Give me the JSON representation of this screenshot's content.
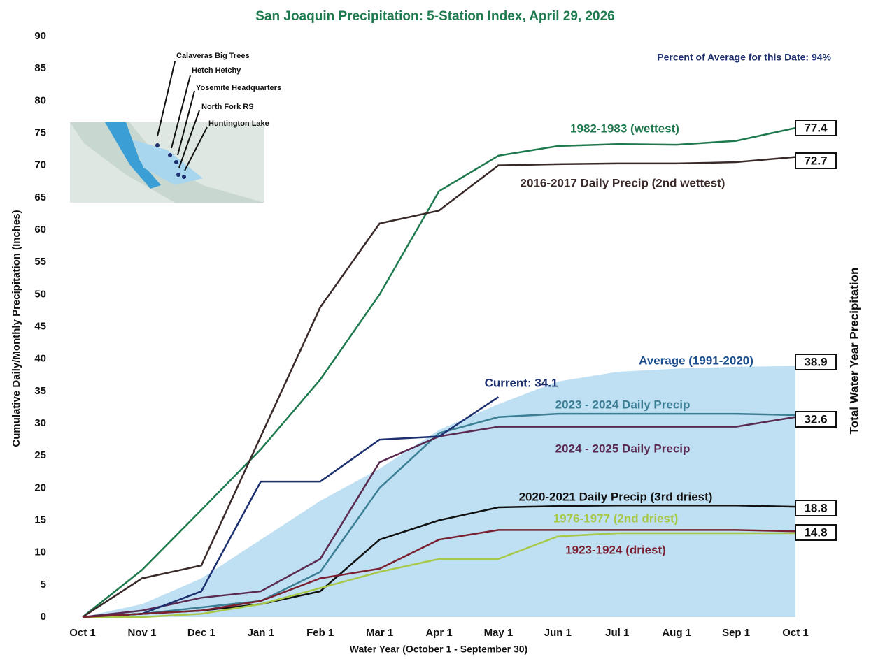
{
  "chart_data": {
    "type": "line",
    "title": "San Joaquin Precipitation: 5-Station Index, April 29, 2026",
    "subtitle": "Percent of Average for this Date: 94%",
    "x_label": "Water Year (October 1 - September 30)",
    "y_label": "Cumulative Daily/Monthly Precipitation (Inches)",
    "y2_label": "Total Water Year Precipitation",
    "stations": [
      "Calaveras Big Trees",
      "Hetch Hetchy",
      "Yosemite Headquarters",
      "North Fork RS",
      "Huntington Lake"
    ],
    "categories": [
      "Oct 1",
      "Nov 1",
      "Dec 1",
      "Jan 1",
      "Feb 1",
      "Mar 1",
      "Apr 1",
      "May 1",
      "Jun 1",
      "Jul 1",
      "Aug 1",
      "Sep 1",
      "Oct 1"
    ],
    "ylim": [
      0,
      90
    ],
    "yticks": [
      0,
      5,
      10,
      15,
      20,
      25,
      30,
      35,
      40,
      45,
      50,
      55,
      60,
      65,
      70,
      75,
      80,
      85,
      90
    ],
    "series": [
      {
        "name": "Average (1991-2020)",
        "color": "#a9d6ef",
        "style": "area",
        "values": [
          0,
          2,
          6,
          12,
          18,
          23,
          29,
          33,
          36.5,
          38,
          38.5,
          38.8,
          38.9
        ],
        "total": 38.9
      },
      {
        "name": "1982-1983 (wettest)",
        "color": "#1e7a4e",
        "style": "line",
        "values": [
          0,
          7.3,
          16.6,
          26,
          36.8,
          50,
          66,
          71.5,
          73,
          73.3,
          73.2,
          73.8,
          75.8
        ],
        "total": 77.4
      },
      {
        "name": "2016-2017 Daily Precip (2nd wettest)",
        "color": "#3a2a2a",
        "style": "line",
        "values": [
          0,
          6,
          8,
          28,
          48,
          61,
          63,
          70,
          70.2,
          70.3,
          70.3,
          70.5,
          71.3
        ],
        "total": 72.7
      },
      {
        "name": "2023 - 2024 Daily Precip",
        "color": "#3c7f95",
        "style": "line",
        "values": [
          0,
          0.5,
          1.5,
          2.5,
          7,
          20,
          28.5,
          31,
          31.5,
          31.5,
          31.5,
          31.5,
          31.3
        ],
        "total": 32.6
      },
      {
        "name": "2024 - 2025 Daily Precip",
        "color": "#5a2a50",
        "style": "line",
        "values": [
          0,
          1,
          3,
          4,
          9,
          24,
          28,
          29.5,
          29.5,
          29.5,
          29.5,
          29.5,
          31
        ]
      },
      {
        "name": "Current: 34.1",
        "color": "#1c2f6e",
        "style": "line",
        "values": [
          0,
          0.5,
          4,
          21,
          21,
          27.5,
          28,
          34.1,
          null,
          null,
          null,
          null,
          null
        ]
      },
      {
        "name": "2020-2021 Daily Precip (3rd driest)",
        "color": "#111111",
        "style": "line",
        "values": [
          0,
          0.5,
          1,
          2,
          4,
          12,
          15,
          17,
          17.2,
          17.3,
          17.3,
          17.3,
          17.1
        ],
        "total": 18.8
      },
      {
        "name": "1976-1977 (2nd driest)",
        "color": "#a8c84a",
        "style": "line",
        "values": [
          0,
          0,
          0.5,
          2,
          4.5,
          7,
          9,
          9,
          12.5,
          13,
          13,
          13,
          13
        ]
      },
      {
        "name": "1923-1924 (driest)",
        "color": "#7a2030",
        "style": "line",
        "values": [
          0,
          0.5,
          1,
          2.5,
          6,
          7.5,
          12,
          13.5,
          13.5,
          13.5,
          13.5,
          13.5,
          13.3
        ],
        "total": 14.8
      }
    ]
  }
}
